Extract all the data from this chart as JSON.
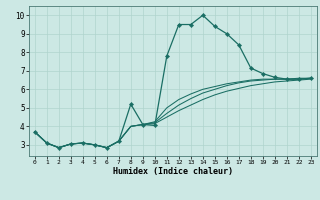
{
  "xlabel": "Humidex (Indice chaleur)",
  "background_color": "#cce8e4",
  "grid_color": "#b0d4ce",
  "line_color": "#1a6e64",
  "xlim_min": -0.5,
  "xlim_max": 23.5,
  "ylim_min": 2.4,
  "ylim_max": 10.5,
  "xticks": [
    0,
    1,
    2,
    3,
    4,
    5,
    6,
    7,
    8,
    9,
    10,
    11,
    12,
    13,
    14,
    15,
    16,
    17,
    18,
    19,
    20,
    21,
    22,
    23
  ],
  "yticks": [
    3,
    4,
    5,
    6,
    7,
    8,
    9,
    10
  ],
  "line_main_x": [
    0,
    1,
    2,
    3,
    4,
    5,
    6,
    7,
    8,
    9,
    10,
    11,
    12,
    13,
    14,
    15,
    16,
    17,
    18,
    19,
    20,
    21,
    22,
    23
  ],
  "line_main_y": [
    3.7,
    3.1,
    2.85,
    3.05,
    3.1,
    3.0,
    2.85,
    3.2,
    5.2,
    4.1,
    4.05,
    7.8,
    9.5,
    9.5,
    10.0,
    9.4,
    9.0,
    8.4,
    7.15,
    6.85,
    6.65,
    6.55,
    6.55,
    6.6
  ],
  "line2_x": [
    0,
    1,
    2,
    3,
    4,
    5,
    6,
    7,
    8,
    9,
    10,
    11,
    12,
    13,
    14,
    15,
    16,
    17,
    18,
    19,
    20,
    21,
    22,
    23
  ],
  "line2_y": [
    3.7,
    3.1,
    2.85,
    3.05,
    3.1,
    3.0,
    2.85,
    3.2,
    4.0,
    4.1,
    4.15,
    4.5,
    4.85,
    5.15,
    5.45,
    5.7,
    5.9,
    6.05,
    6.2,
    6.3,
    6.4,
    6.45,
    6.5,
    6.55
  ],
  "line3_x": [
    0,
    1,
    2,
    3,
    4,
    5,
    6,
    7,
    8,
    9,
    10,
    11,
    12,
    13,
    14,
    15,
    16,
    17,
    18,
    19,
    20,
    21,
    22,
    23
  ],
  "line3_y": [
    3.7,
    3.1,
    2.85,
    3.05,
    3.1,
    3.0,
    2.85,
    3.2,
    4.0,
    4.1,
    4.2,
    4.7,
    5.15,
    5.5,
    5.8,
    6.0,
    6.2,
    6.35,
    6.45,
    6.5,
    6.55,
    6.55,
    6.55,
    6.6
  ],
  "line4_x": [
    0,
    1,
    2,
    3,
    4,
    5,
    6,
    7,
    8,
    9,
    10,
    11,
    12,
    13,
    14,
    15,
    16,
    17,
    18,
    19,
    20,
    21,
    22,
    23
  ],
  "line4_y": [
    3.7,
    3.1,
    2.85,
    3.05,
    3.1,
    3.0,
    2.85,
    3.2,
    4.0,
    4.1,
    4.25,
    5.0,
    5.45,
    5.75,
    6.0,
    6.15,
    6.3,
    6.4,
    6.5,
    6.55,
    6.55,
    6.55,
    6.6,
    6.6
  ]
}
